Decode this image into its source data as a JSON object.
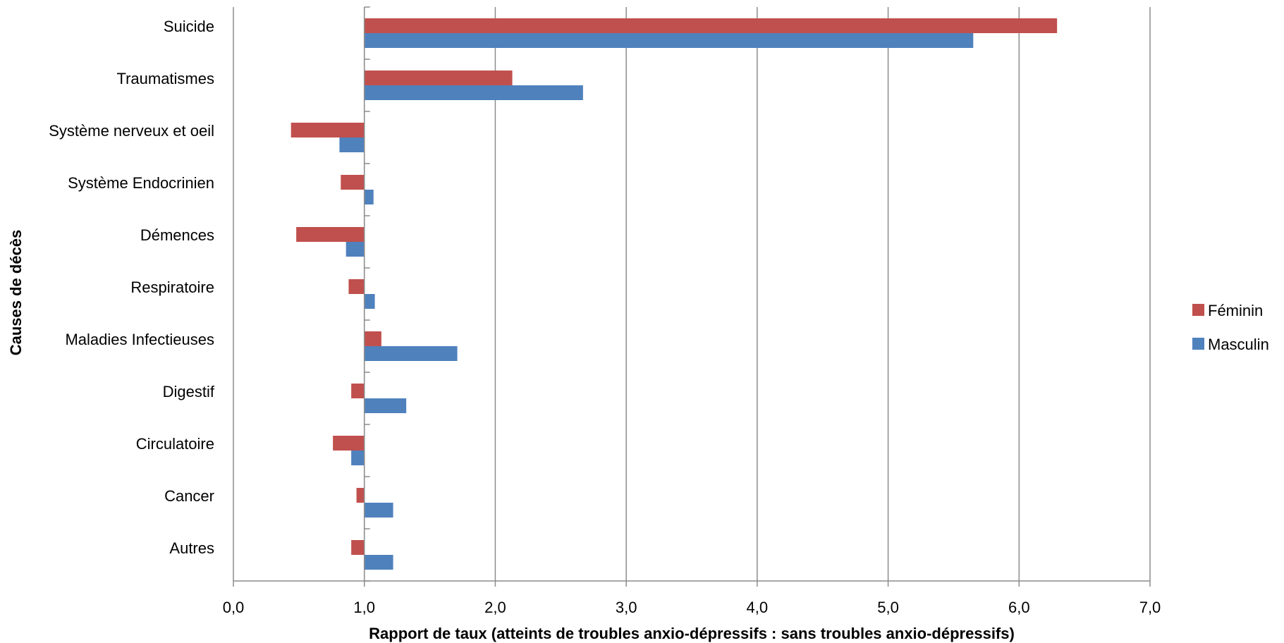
{
  "chart_data": {
    "type": "bar",
    "orientation": "horizontal",
    "title": "",
    "xlabel": "Rapport de taux (atteints de troubles anxio-dépressifs : sans troubles anxio-dépressifs)",
    "ylabel": "Causes de décès",
    "xlim": [
      0,
      7
    ],
    "x_ticks": [
      "0,0",
      "1,0",
      "2,0",
      "3,0",
      "4,0",
      "5,0",
      "6,0",
      "7,0"
    ],
    "baseline": 1.0,
    "grid": "vertical",
    "legend_position": "right",
    "categories": [
      "Suicide",
      "Traumatismes",
      "Système nerveux et oeil",
      "Système Endocrinien",
      "Démences",
      "Respiratoire",
      "Maladies Infectieuses",
      "Digestif",
      "Circulatoire",
      "Cancer",
      "Autres"
    ],
    "series": [
      {
        "name": "Féminin",
        "color": "#c0504d",
        "values": [
          6.29,
          2.13,
          0.44,
          0.82,
          0.48,
          0.88,
          1.13,
          0.9,
          0.76,
          0.94,
          0.9
        ]
      },
      {
        "name": "Masculin",
        "color": "#4f81bd",
        "values": [
          5.65,
          2.67,
          0.81,
          1.07,
          0.86,
          1.08,
          1.71,
          1.32,
          0.9,
          1.22,
          1.22
        ]
      }
    ]
  }
}
